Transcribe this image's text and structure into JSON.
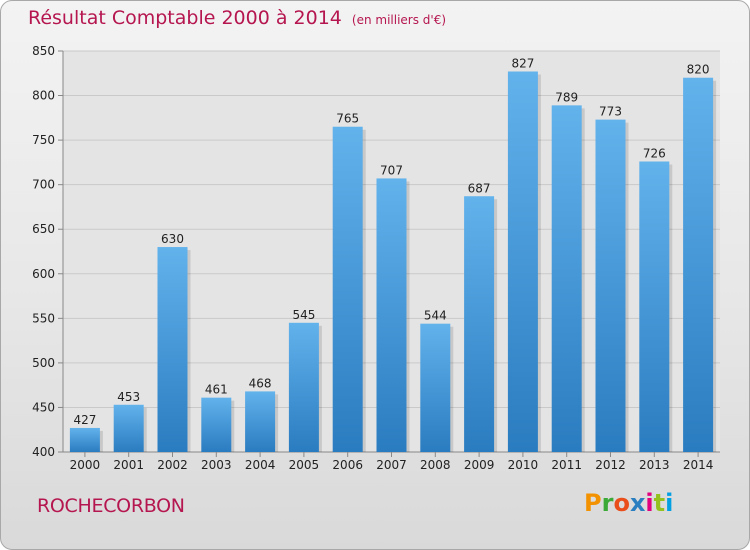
{
  "header": {
    "title": "Résultat Comptable 2000 à 2014",
    "unit_note": "(en milliers d'€)"
  },
  "footer": {
    "place_name": "ROCHECORBON",
    "logo_text": "Proxiti",
    "logo_colors": [
      "#f39200",
      "#3aa935",
      "#e94e1b",
      "#2a7fc1",
      "#e3007e",
      "#95c11f",
      "#00a0e3"
    ]
  },
  "colors": {
    "bar_light": "#62b2ec",
    "bar_dark": "#2a7cc0",
    "title": "#b5164f",
    "grid": "#c9c9c9"
  },
  "chart_data": {
    "type": "bar",
    "title": "Résultat Comptable 2000 à 2014",
    "subtitle": "(en milliers d'€)",
    "categories": [
      "2000",
      "2001",
      "2002",
      "2003",
      "2004",
      "2005",
      "2006",
      "2007",
      "2008",
      "2009",
      "2010",
      "2011",
      "2012",
      "2013",
      "2014"
    ],
    "values": [
      427,
      453,
      630,
      461,
      468,
      545,
      765,
      707,
      544,
      687,
      827,
      789,
      773,
      726,
      820
    ],
    "ylim": [
      400,
      850
    ],
    "yticks": [
      400,
      450,
      500,
      550,
      600,
      650,
      700,
      750,
      800,
      850
    ],
    "xlabel": "",
    "ylabel": "",
    "grid": true,
    "legend": "none"
  }
}
